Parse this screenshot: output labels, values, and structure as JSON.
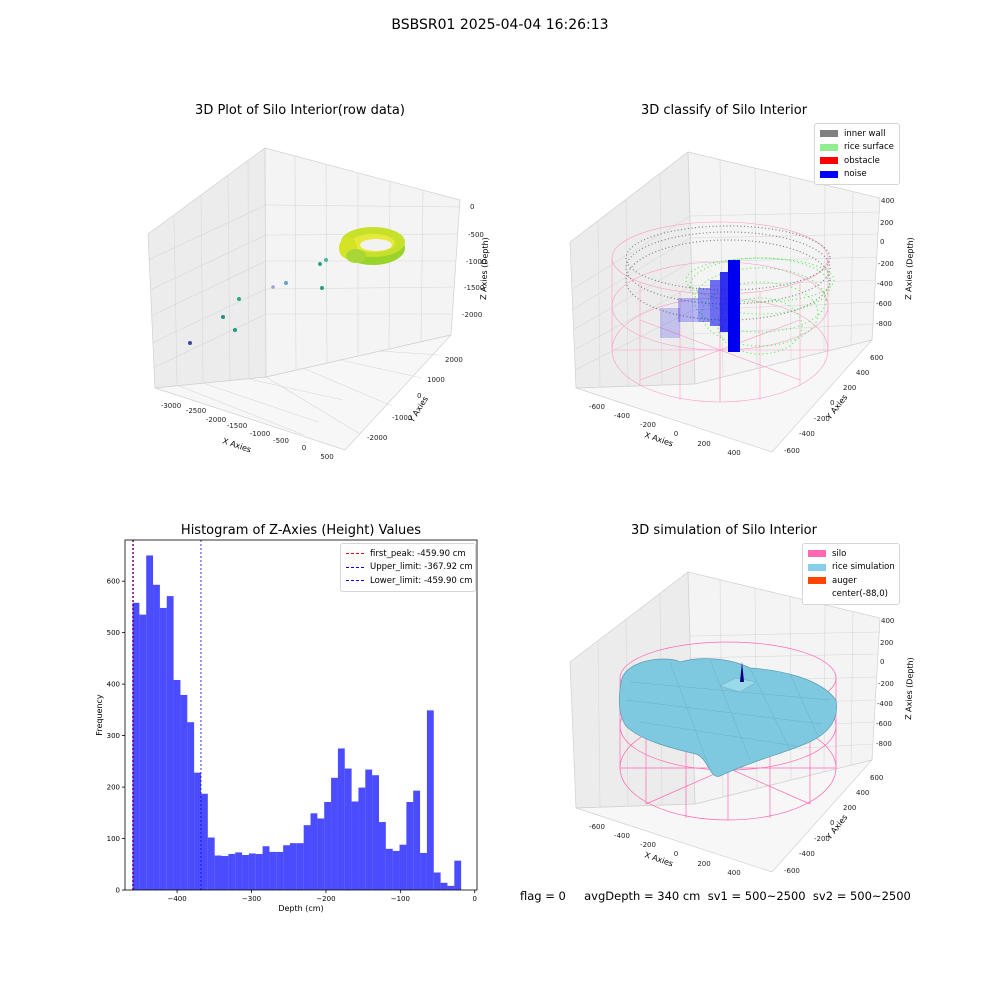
{
  "suptitle": "BSBSR01 2025-04-04 16:26:13",
  "panels": {
    "raw": {
      "title": "3D Plot of Silo Interior(row data)",
      "xlabel": "X Axies",
      "ylabel": "Y Axies",
      "zlabel": "Z Axies (Depth)",
      "xticks": [
        "-3000",
        "-2500",
        "-2000",
        "-1500",
        "-1000",
        "-500",
        "0",
        "500"
      ],
      "yticks": [
        "-2000",
        "-1000",
        "0",
        "1000",
        "2000"
      ],
      "zticks": [
        "0",
        "-500",
        "-1000",
        "-1500",
        "-2000"
      ]
    },
    "classify": {
      "title": "3D classify of Silo Interior",
      "xlabel": "X Axies",
      "ylabel": "Y Axies",
      "zlabel": "Z Axies (Depth)",
      "xticks": [
        "-600",
        "-400",
        "-200",
        "0",
        "200",
        "400"
      ],
      "yticks": [
        "-600",
        "-400",
        "-200",
        "0",
        "200",
        "400",
        "600"
      ],
      "zticks": [
        "400",
        "200",
        "0",
        "-200",
        "-400",
        "-600",
        "-800"
      ],
      "legend": [
        {
          "label": "inner wall",
          "color": "#808080"
        },
        {
          "label": "rice surface",
          "color": "#90ee90"
        },
        {
          "label": "obstacle",
          "color": "#ff0000"
        },
        {
          "label": "noise",
          "color": "#0000ff"
        }
      ]
    },
    "simulation": {
      "title": "3D simulation of Silo Interior",
      "xlabel": "X Axies",
      "ylabel": "Y Axies",
      "zlabel": "Z Axies (Depth)",
      "xticks": [
        "-600",
        "-400",
        "-200",
        "0",
        "200",
        "400"
      ],
      "yticks": [
        "-600",
        "-400",
        "-200",
        "0",
        "200",
        "400",
        "600"
      ],
      "zticks": [
        "400",
        "200",
        "0",
        "-200",
        "-400",
        "-600",
        "-800"
      ],
      "legend": [
        {
          "label": "silo",
          "color": "#ff69b4"
        },
        {
          "label": "rice simulation",
          "color": "#87ceeb"
        },
        {
          "label": "auger",
          "color": "#ff4500"
        },
        {
          "label": "center(-88,0)",
          "color": "#ffffff"
        }
      ]
    }
  },
  "footer": "flag = 0     avgDepth = 340 cm  sv1 = 500~2500  sv2 = 500~2500",
  "chart_data": {
    "type": "bar",
    "title": "Histogram of Z-Axies (Height) Values",
    "xlabel": "Depth (cm)",
    "ylabel": "Frequency",
    "bar_color": "#0000ff",
    "xlim": [
      -470,
      3
    ],
    "ylim": [
      0,
      680
    ],
    "xticks": [
      -400,
      -300,
      -200,
      -100,
      0
    ],
    "yticks": [
      0,
      100,
      200,
      300,
      400,
      500,
      600
    ],
    "bin_start": -459.9,
    "bin_width": 9.2,
    "values": [
      558,
      535,
      650,
      593,
      548,
      571,
      408,
      379,
      326,
      228,
      187,
      102,
      67,
      66,
      70,
      73,
      68,
      71,
      70,
      85,
      74,
      74,
      87,
      91,
      91,
      126,
      149,
      139,
      171,
      218,
      275,
      236,
      172,
      199,
      234,
      223,
      132,
      80,
      76,
      88,
      171,
      193,
      72,
      349,
      34,
      14,
      8,
      57
    ],
    "vlines": [
      {
        "label": "first_peak: -459.90 cm",
        "x": -459.9,
        "color": "#ff0000"
      },
      {
        "label": "Upper_limit: -367.92 cm",
        "x": -367.92,
        "color": "#0000ff"
      },
      {
        "label": "Lower_limit: -459.90 cm",
        "x": -459.9,
        "color": "#0000ff"
      }
    ],
    "legend_position": "upper right"
  }
}
